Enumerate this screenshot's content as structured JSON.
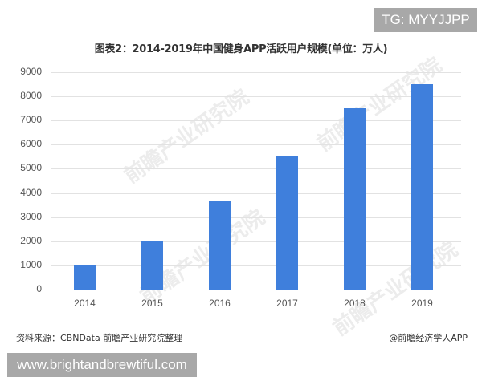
{
  "badges": {
    "top_right": "TG: MYYJJPP",
    "bottom_left": "www.brightandbrewtiful.com"
  },
  "footer": {
    "source": "资料来源：CBNData 前瞻产业研究院整理",
    "credit": "@前瞻经济学人APP"
  },
  "watermark": "前瞻产业研究院",
  "colors": {
    "bar": "#3f7fdc",
    "gridline": "#e2e2e2",
    "badge_bg": "#a8a8a8"
  },
  "chart_data": {
    "type": "bar",
    "title": "图表2：2014-2019年中国健身APP活跃用户规模(单位：万人)",
    "xlabel": "",
    "ylabel": "",
    "categories": [
      "2014",
      "2015",
      "2016",
      "2017",
      "2018",
      "2019"
    ],
    "values": [
      1000,
      2000,
      3700,
      5500,
      7500,
      8500
    ],
    "ylim": [
      0,
      9000
    ],
    "yticks": [
      "0",
      "1000",
      "2000",
      "3000",
      "4000",
      "5000",
      "6000",
      "7000",
      "8000",
      "9000"
    ],
    "grid": true,
    "legend": null,
    "unit": "万人"
  }
}
